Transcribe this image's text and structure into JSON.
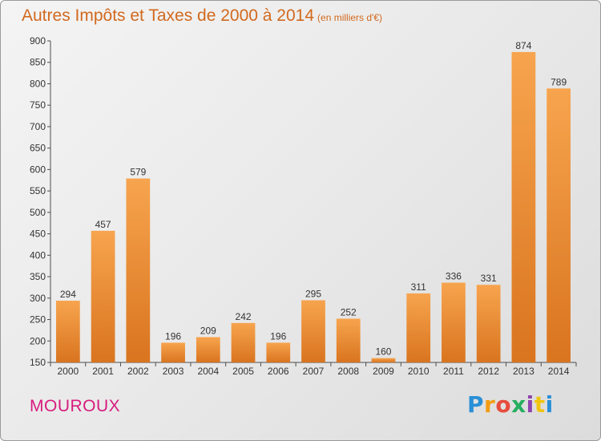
{
  "title": "Autres Impôts et Taxes de 2000 à 2014",
  "subtitle": "(en milliers d'€)",
  "commune": "MOUROUX",
  "logo": {
    "text": "Proxiti",
    "letter_colors": [
      "#2a8fd6",
      "#f39c12",
      "#e74c3c",
      "#27ae60",
      "#8e44ad",
      "#f1c40f",
      "#2a8fd6"
    ]
  },
  "colors": {
    "bar_top": "#f7a44e",
    "bar_bottom": "#d9741f",
    "axis": "#4d4d4d",
    "title": "#d2691e",
    "commune": "#d81b7e"
  },
  "chart_data": {
    "type": "bar",
    "title": "Autres Impôts et Taxes de 2000 à 2014",
    "subtitle": "(en milliers d'€)",
    "categories": [
      "2000",
      "2001",
      "2002",
      "2003",
      "2004",
      "2005",
      "2006",
      "2007",
      "2008",
      "2009",
      "2010",
      "2011",
      "2012",
      "2013",
      "2014"
    ],
    "values": [
      294,
      457,
      579,
      196,
      209,
      242,
      196,
      295,
      252,
      160,
      311,
      336,
      331,
      874,
      789
    ],
    "ylim": [
      150,
      900
    ],
    "yticks": [
      150,
      200,
      250,
      300,
      350,
      400,
      450,
      500,
      550,
      600,
      650,
      700,
      750,
      800,
      850,
      900
    ],
    "grid": false,
    "data_labels": true
  }
}
